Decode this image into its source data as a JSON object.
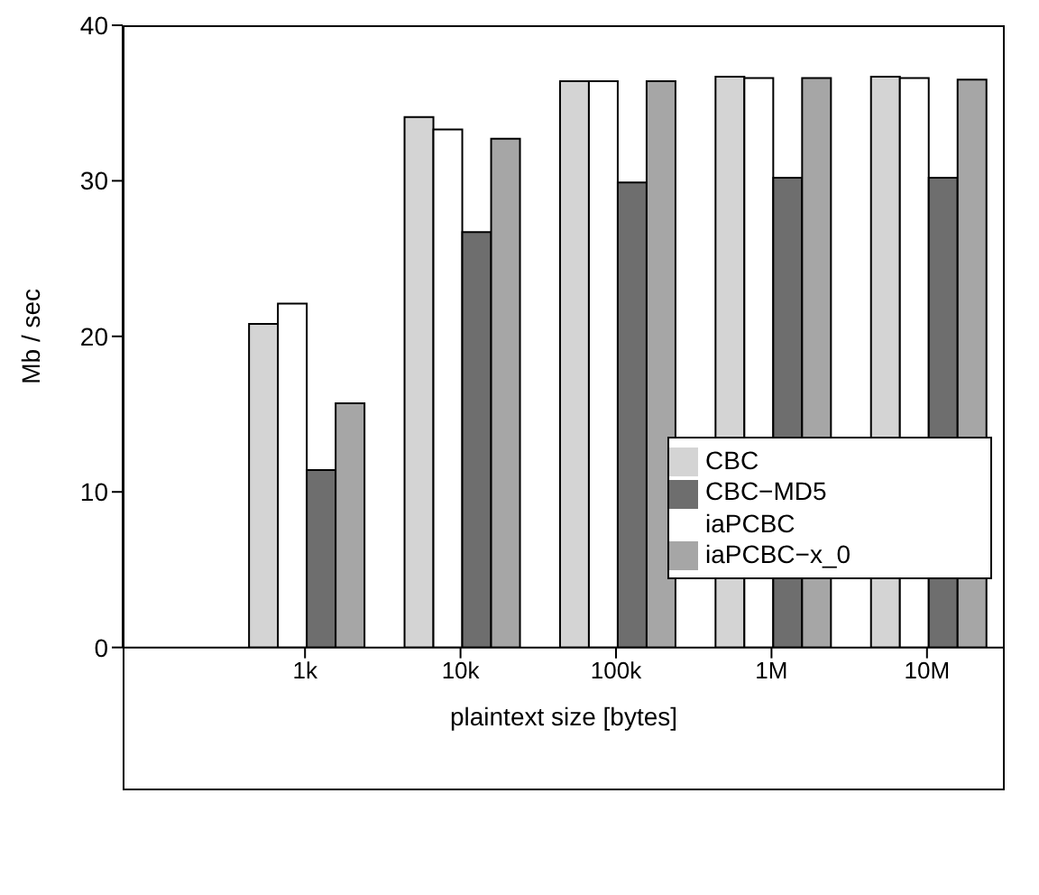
{
  "chart_data": {
    "type": "bar",
    "xlabel": "plaintext size [bytes]",
    "ylabel": "Mb / sec",
    "categories": [
      "1k",
      "10k",
      "100k",
      "1M",
      "10M"
    ],
    "series": [
      {
        "name": "CBC",
        "color": "#d4d4d4",
        "values": [
          20.8,
          34.1,
          36.4,
          36.7,
          36.7
        ]
      },
      {
        "name": "iaPCBC",
        "color": "#ffffff",
        "values": [
          22.1,
          33.3,
          36.4,
          36.6,
          36.6
        ]
      },
      {
        "name": "CBC−MD5",
        "color": "#6e6e6e",
        "values": [
          11.4,
          26.7,
          29.9,
          30.2,
          30.2
        ]
      },
      {
        "name": "iaPCBC−x_0",
        "color": "#a6a6a6",
        "values": [
          15.7,
          32.7,
          36.4,
          36.6,
          36.5
        ]
      }
    ],
    "ylim": [
      0,
      40
    ],
    "yticks": [
      0,
      10,
      20,
      30,
      40
    ],
    "grid": false,
    "legend": "right"
  }
}
